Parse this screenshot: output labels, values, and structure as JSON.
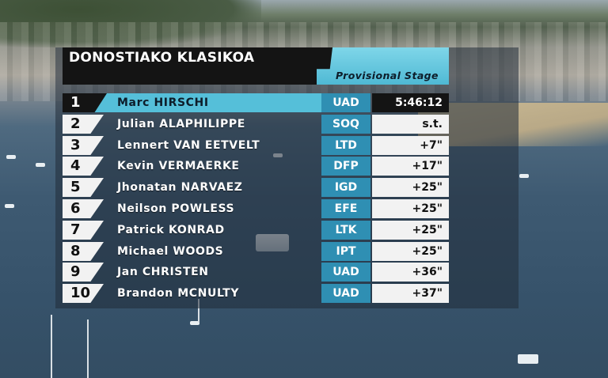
{
  "race": {
    "title": "DONOSTIAKO KLASIKOA",
    "stage_label": "Provisional Stage"
  },
  "colors": {
    "accent": "#55bfd9",
    "team_badge": "#2f8fb3",
    "dark": "#141414"
  },
  "results": [
    {
      "rank": "1",
      "rider": "Marc HIRSCHI",
      "team": "UAD",
      "gap": "5:46:12"
    },
    {
      "rank": "2",
      "rider": "Julian ALAPHILIPPE",
      "team": "SOQ",
      "gap": "s.t."
    },
    {
      "rank": "3",
      "rider": "Lennert VAN EETVELT",
      "team": "LTD",
      "gap": "+7\""
    },
    {
      "rank": "4",
      "rider": "Kevin VERMAERKE",
      "team": "DFP",
      "gap": "+17\""
    },
    {
      "rank": "5",
      "rider": "Jhonatan NARVAEZ",
      "team": "IGD",
      "gap": "+25\""
    },
    {
      "rank": "6",
      "rider": "Neilson POWLESS",
      "team": "EFE",
      "gap": "+25\""
    },
    {
      "rank": "7",
      "rider": "Patrick KONRAD",
      "team": "LTK",
      "gap": "+25\""
    },
    {
      "rank": "8",
      "rider": "Michael WOODS",
      "team": "IPT",
      "gap": "+25\""
    },
    {
      "rank": "9",
      "rider": "Jan CHRISTEN",
      "team": "UAD",
      "gap": "+36\""
    },
    {
      "rank": "10",
      "rider": "Brandon MCNULTY",
      "team": "UAD",
      "gap": "+37\""
    }
  ]
}
